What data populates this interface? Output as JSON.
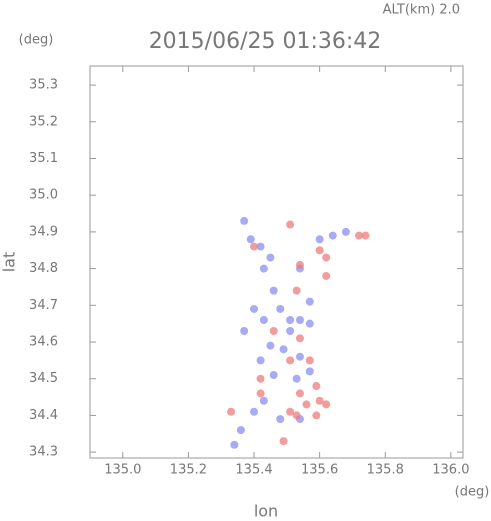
{
  "chart_data": {
    "type": "scatter",
    "title": "2015/06/25 01:36:42",
    "subtitle": "ALT(km) 2.0",
    "y_unit": "(deg)",
    "x_unit": "(deg)",
    "x_label": "lon",
    "y_label": "lat",
    "xlim": [
      134.9,
      136.037
    ],
    "ylim": [
      34.284,
      35.352
    ],
    "xticks": [
      {
        "value": 135.0,
        "label": "135.0"
      },
      135.2,
      135.4,
      135.6,
      135.8,
      {
        "value": 136.0,
        "label": "136.0"
      }
    ],
    "yticks": [
      34.3,
      34.4,
      34.5,
      34.6,
      34.7,
      34.8,
      34.9,
      {
        "value": 35.0,
        "label": "35.0"
      },
      35.1,
      35.2,
      35.3
    ],
    "series": [
      {
        "color": "#8a8ef0",
        "x": [
          135.37,
          135.39,
          135.42,
          135.45,
          135.43,
          135.54,
          135.6,
          135.64,
          135.37,
          135.4,
          135.43,
          135.48,
          135.51,
          135.54,
          135.57,
          135.45,
          135.49,
          135.54,
          135.42,
          135.46,
          135.53,
          135.57,
          135.43,
          135.4,
          135.48,
          135.54,
          135.36,
          135.34,
          135.51,
          135.46,
          135.68,
          135.57
        ],
        "y": [
          34.93,
          34.88,
          34.86,
          34.83,
          34.8,
          34.8,
          34.88,
          34.89,
          34.63,
          34.69,
          34.66,
          34.69,
          34.63,
          34.66,
          34.65,
          34.59,
          34.58,
          34.56,
          34.55,
          34.51,
          34.5,
          34.52,
          34.44,
          34.41,
          34.39,
          34.39,
          34.36,
          34.32,
          34.66,
          34.74,
          34.9,
          34.71
        ]
      },
      {
        "color": "#ee7b7b",
        "x": [
          135.51,
          135.54,
          135.6,
          135.72,
          135.74,
          135.4,
          135.62,
          135.53,
          135.54,
          135.57,
          135.59,
          135.54,
          135.6,
          135.56,
          135.51,
          135.53,
          135.59,
          135.62,
          135.33,
          135.42,
          135.46,
          135.51,
          135.62,
          135.49,
          135.42
        ],
        "y": [
          34.92,
          34.81,
          34.85,
          34.89,
          34.89,
          34.86,
          34.78,
          34.74,
          34.61,
          34.55,
          34.48,
          34.46,
          34.44,
          34.43,
          34.41,
          34.4,
          34.4,
          34.43,
          34.41,
          34.5,
          34.63,
          34.55,
          34.83,
          34.33,
          34.46
        ]
      }
    ]
  }
}
